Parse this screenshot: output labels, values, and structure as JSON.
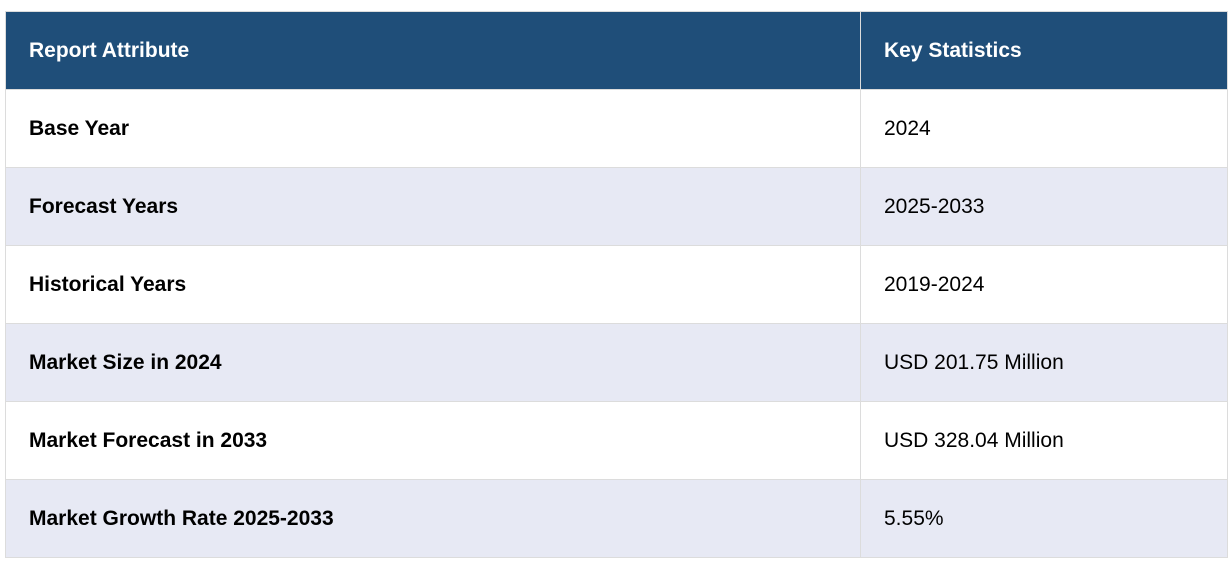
{
  "table": {
    "headers": [
      "Report Attribute",
      "Key Statistics"
    ],
    "rows": [
      [
        "Base Year",
        "2024"
      ],
      [
        "Forecast Years",
        "2025-2033"
      ],
      [
        "Historical Years",
        "2019-2024"
      ],
      [
        "Market Size in 2024",
        "USD 201.75 Million"
      ],
      [
        "Market Forecast in 2033",
        "USD 328.04 Million"
      ],
      [
        "Market Growth Rate 2025-2033",
        "5.55%"
      ]
    ]
  },
  "colors": {
    "header_bg": "#1f4e79",
    "header_text": "#ffffff",
    "row_alt_bg": "#e7e9f4",
    "row_bg": "#ffffff"
  }
}
